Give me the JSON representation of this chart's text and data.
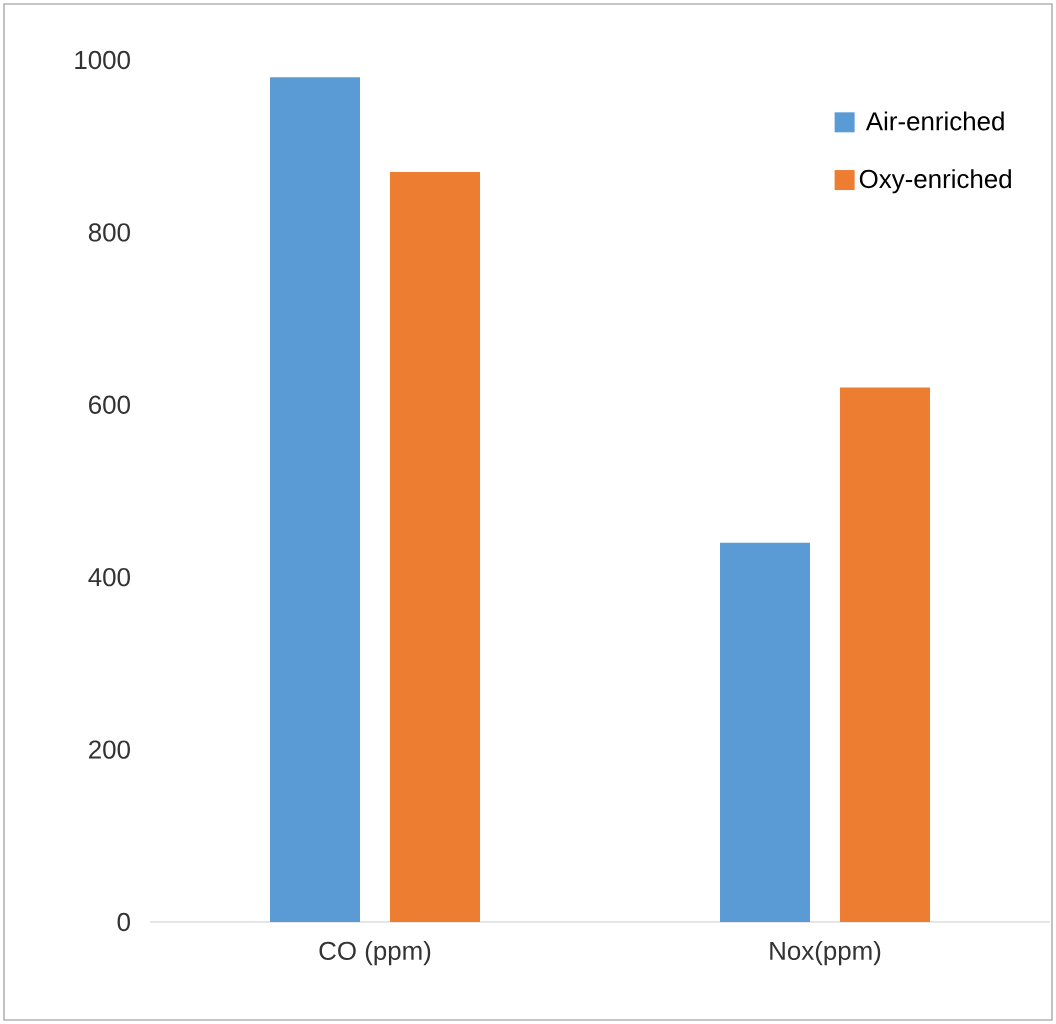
{
  "chart_data": {
    "type": "bar",
    "categories": [
      "CO (ppm)",
      "Nox(ppm)"
    ],
    "series": [
      {
        "name": "Air-enriched",
        "color": "#5b9bd5",
        "values": [
          980,
          440
        ]
      },
      {
        "name": "Oxy-enriched",
        "color": "#ed7d31",
        "values": [
          870,
          620
        ]
      }
    ],
    "ylim": [
      0,
      1000
    ],
    "yticks": [
      0,
      200,
      400,
      600,
      800,
      1000
    ],
    "grid": false,
    "legend": "top right"
  }
}
